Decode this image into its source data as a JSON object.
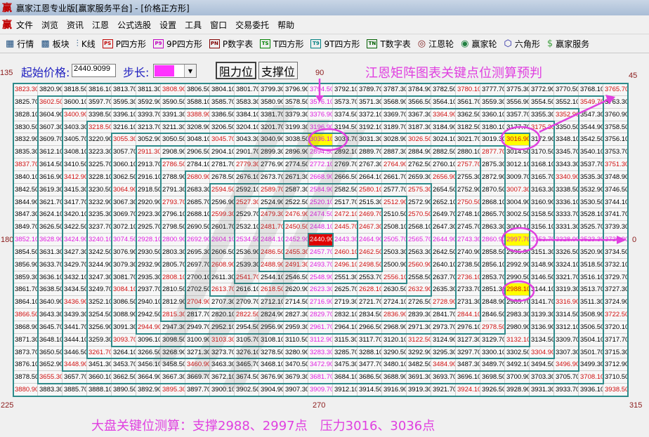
{
  "window": {
    "title": "赢家江恩专业版[赢家服务平台] - [价格正方形]",
    "logo": "赢"
  },
  "menu": [
    "文件",
    "浏览",
    "资讯",
    "江恩",
    "公式选股",
    "设置",
    "工具",
    "窗口",
    "交易委托",
    "帮助"
  ],
  "toolbar": [
    {
      "icon": "quote-table-icon",
      "glyph": "▦",
      "label": "行情"
    },
    {
      "icon": "sector-blocks-icon",
      "glyph": "▩",
      "label": "板块"
    },
    {
      "icon": "candlestick-icon",
      "glyph": "⫶",
      "label": "K线"
    },
    {
      "icon": "ps-icon",
      "badge": "PS",
      "label": "P四方形",
      "color": "#c00000"
    },
    {
      "icon": "p9-icon",
      "badge": "P9",
      "label": "9P四方形",
      "color": "#c000c0"
    },
    {
      "icon": "pn-icon",
      "badge": "PN",
      "label": "P数字表",
      "color": "#800000"
    },
    {
      "icon": "ts-icon",
      "badge": "TS",
      "label": "T四方形",
      "color": "#008000"
    },
    {
      "icon": "t9-icon",
      "badge": "T9",
      "label": "9T四方形",
      "color": "#008080"
    },
    {
      "icon": "tn-icon",
      "badge": "TN",
      "label": "T数字表",
      "color": "#006000"
    },
    {
      "icon": "gann-wheel-icon",
      "glyph": "◎",
      "label": "江恩轮",
      "color": "#802020"
    },
    {
      "icon": "winner-wheel-icon",
      "glyph": "◉",
      "label": "赢家轮",
      "color": "#208040"
    },
    {
      "icon": "hexagon-icon",
      "glyph": "⬡",
      "label": "六角形",
      "color": "#2020a0"
    },
    {
      "icon": "dollar-icon",
      "glyph": "$",
      "label": "赢家服务",
      "color": "#40a040"
    }
  ],
  "controls": {
    "start_price_label": "起始价格:",
    "start_price_value": "2440.9099",
    "step_label": "步长:",
    "resistance_button": "阻力位",
    "support_button": "支撑位"
  },
  "page_title": "江恩矩阵图表关键点位测算预判",
  "degrees": {
    "top_left": "135",
    "top": "90",
    "top_right": "45",
    "left": "180",
    "right": "0",
    "bottom_left": "225",
    "bottom": "270",
    "bottom_right": "315"
  },
  "bottom_note": "大盘关键位测算：支撑2988、2997点　压力3016、3036点",
  "colors": {
    "diagonal_text": "#d01010",
    "axis_text": "#e020e0",
    "highlight_bg": "#ffff00",
    "center_bg": "#e00000",
    "ring_line": "#2e8b8b",
    "annotation": "#e040e0"
  },
  "center_value": "2440.90",
  "highlighted_values": [
    "3036.10",
    "3016.90",
    "2997.70",
    "2988.10"
  ],
  "grid_rows": [
    [
      "3823.30",
      "3820.90",
      "3818.50",
      "3816.10",
      "3813.70",
      "3811.30",
      "3808.90",
      "3806.50",
      "3804.10",
      "3801.70",
      "3799.30",
      "3796.90",
      "3794.50",
      "3792.10",
      "3789.70",
      "3787.30",
      "3784.90",
      "3782.50",
      "3780.10",
      "3777.70",
      "3775.30",
      "3772.90",
      "3770.50",
      "3768.10",
      "3765.70"
    ],
    [
      "3825.70",
      "3602.50",
      "3600.10",
      "3597.70",
      "3595.30",
      "3592.90",
      "3590.50",
      "3588.10",
      "3585.70",
      "3583.30",
      "3580.90",
      "3578.50",
      "3576.10",
      "3573.70",
      "3571.30",
      "3568.90",
      "3566.50",
      "3564.10",
      "3561.70",
      "3559.30",
      "3556.90",
      "3554.50",
      "3552.10",
      "3549.70",
      "3763.30"
    ],
    [
      "3828.10",
      "3604.90",
      "3400.90",
      "3398.50",
      "3396.10",
      "3393.70",
      "3391.30",
      "3388.90",
      "3386.50",
      "3384.10",
      "3381.70",
      "3379.30",
      "3376.90",
      "3374.50",
      "3372.10",
      "3369.70",
      "3367.30",
      "3364.90",
      "3362.50",
      "3360.10",
      "3357.70",
      "3355.30",
      "3352.90",
      "3547.30",
      "3760.90"
    ],
    [
      "3830.50",
      "3607.30",
      "3403.30",
      "3218.50",
      "3216.10",
      "3213.70",
      "3211.30",
      "3208.90",
      "3206.50",
      "3204.10",
      "3201.70",
      "3199.30",
      "3196.90",
      "3194.50",
      "3192.10",
      "3189.70",
      "3187.30",
      "3184.90",
      "3182.50",
      "3180.10",
      "3177.70",
      "3175.30",
      "3350.50",
      "3544.90",
      "3758.50"
    ],
    [
      "3832.90",
      "3609.70",
      "3405.70",
      "3220.90",
      "3055.30",
      "3052.90",
      "3050.50",
      "3048.10",
      "3045.70",
      "3043.30",
      "3040.90",
      "3038.50",
      "3036.10",
      "3033.70",
      "3031.30",
      "3028.90",
      "3026.50",
      "3024.10",
      "3021.70",
      "3019.30",
      "3016.90",
      "3172.90",
      "3348.10",
      "3542.50",
      "3756.10"
    ],
    [
      "3835.30",
      "3612.10",
      "3408.10",
      "3223.30",
      "3057.70",
      "2911.30",
      "2908.90",
      "2906.50",
      "2904.10",
      "2901.70",
      "2899.30",
      "2896.90",
      "2894.50",
      "2892.10",
      "2889.70",
      "2887.30",
      "2884.90",
      "2882.50",
      "2880.10",
      "2877.70",
      "3014.50",
      "3170.50",
      "3345.70",
      "3540.10",
      "3753.70"
    ],
    [
      "3837.70",
      "3614.50",
      "3410.50",
      "3225.70",
      "3060.10",
      "2913.70",
      "2786.50",
      "2784.10",
      "2781.70",
      "2779.30",
      "2776.90",
      "2774.50",
      "2772.10",
      "2769.70",
      "2767.30",
      "2764.90",
      "2762.50",
      "2760.10",
      "2757.70",
      "2875.30",
      "3012.10",
      "3168.10",
      "3343.30",
      "3537.70",
      "3751.30"
    ],
    [
      "3840.10",
      "3616.90",
      "3412.90",
      "3228.10",
      "3062.50",
      "2916.10",
      "2788.90",
      "2680.90",
      "2678.50",
      "2676.10",
      "2673.70",
      "2671.30",
      "2668.90",
      "2666.50",
      "2664.10",
      "2661.70",
      "2659.30",
      "2656.90",
      "2755.30",
      "2872.90",
      "3009.70",
      "3165.70",
      "3340.90",
      "3535.30",
      "3748.90"
    ],
    [
      "3842.50",
      "3619.30",
      "3415.30",
      "3230.50",
      "3064.90",
      "2918.50",
      "2791.30",
      "2683.30",
      "2594.50",
      "2592.10",
      "2589.70",
      "2587.30",
      "2584.90",
      "2582.50",
      "2580.10",
      "2577.70",
      "2575.30",
      "2654.50",
      "2752.90",
      "2870.50",
      "3007.30",
      "3163.30",
      "3338.50",
      "3532.90",
      "3746.50"
    ],
    [
      "3844.90",
      "3621.70",
      "3417.70",
      "3232.90",
      "3067.30",
      "2920.90",
      "2793.70",
      "2685.70",
      "2596.90",
      "2527.30",
      "2524.90",
      "2522.50",
      "2520.10",
      "2517.70",
      "2515.30",
      "2512.90",
      "2572.90",
      "2652.10",
      "2750.50",
      "2868.10",
      "3004.90",
      "3160.90",
      "3336.10",
      "3530.50",
      "3744.10"
    ],
    [
      "3847.30",
      "3624.10",
      "3420.10",
      "3235.30",
      "3069.70",
      "2923.30",
      "2796.10",
      "2688.10",
      "2599.30",
      "2529.70",
      "2479.30",
      "2476.90",
      "2474.50",
      "2472.10",
      "2469.70",
      "2510.50",
      "2570.50",
      "2649.70",
      "2748.10",
      "2865.70",
      "3002.50",
      "3158.50",
      "3333.70",
      "3528.10",
      "3741.70"
    ],
    [
      "3849.70",
      "3626.50",
      "3422.50",
      "3237.70",
      "3072.10",
      "2925.70",
      "2798.50",
      "2690.50",
      "2601.70",
      "2532.10",
      "2481.70",
      "2450.50",
      "2448.10",
      "2445.70",
      "2467.30",
      "2508.10",
      "2568.10",
      "2647.30",
      "2745.70",
      "2863.30",
      "3000.10",
      "3156.10",
      "3331.30",
      "3525.70",
      "3739.30"
    ],
    [
      "3852.10",
      "3628.90",
      "3424.90",
      "3240.10",
      "3074.50",
      "2928.10",
      "2800.90",
      "2692.90",
      "2604.10",
      "2534.50",
      "2484.10",
      "2452.90",
      "2440.90",
      "2443.30",
      "2464.90",
      "2505.70",
      "2565.70",
      "2644.90",
      "2743.30",
      "2860.90",
      "2997.70",
      "3153.70",
      "3328.90",
      "3523.30",
      "3736.90"
    ],
    [
      "3854.50",
      "3631.30",
      "3427.30",
      "3242.50",
      "3076.90",
      "2930.50",
      "2803.30",
      "2695.30",
      "2606.50",
      "2536.90",
      "2486.50",
      "2455.30",
      "2457.70",
      "2460.10",
      "2462.50",
      "2503.30",
      "2563.30",
      "2642.50",
      "2740.90",
      "2858.50",
      "2995.30",
      "3151.30",
      "3326.50",
      "3520.90",
      "3734.50"
    ],
    [
      "3856.90",
      "3633.70",
      "3429.70",
      "3244.90",
      "3079.30",
      "2932.90",
      "2805.70",
      "2697.70",
      "2608.90",
      "2539.30",
      "2488.90",
      "2491.30",
      "2493.70",
      "2496.10",
      "2498.50",
      "2500.90",
      "2560.90",
      "2640.10",
      "2738.50",
      "2856.10",
      "2992.90",
      "3148.90",
      "3324.10",
      "3518.50",
      "3732.10"
    ],
    [
      "3859.30",
      "3636.10",
      "3432.10",
      "3247.30",
      "3081.70",
      "2935.30",
      "2808.10",
      "2700.10",
      "2611.30",
      "2541.70",
      "2544.10",
      "2546.50",
      "2548.90",
      "2551.30",
      "2553.70",
      "2556.10",
      "2558.50",
      "2637.70",
      "2736.10",
      "2853.70",
      "2990.50",
      "3146.50",
      "3321.70",
      "3516.10",
      "3729.70"
    ],
    [
      "3861.70",
      "3638.50",
      "3434.50",
      "3249.70",
      "3084.10",
      "2937.70",
      "2810.50",
      "2702.50",
      "2613.70",
      "2616.10",
      "2618.50",
      "2620.90",
      "2623.30",
      "2625.70",
      "2628.10",
      "2630.50",
      "2632.90",
      "2635.30",
      "2733.70",
      "2851.30",
      "2988.10",
      "3144.10",
      "3319.30",
      "3513.70",
      "3727.30"
    ],
    [
      "3864.10",
      "3640.90",
      "3436.90",
      "3252.10",
      "3086.50",
      "2940.10",
      "2812.90",
      "2704.90",
      "2707.30",
      "2709.70",
      "2712.10",
      "2714.50",
      "2716.90",
      "2719.30",
      "2721.70",
      "2724.10",
      "2726.50",
      "2728.90",
      "2731.30",
      "2848.90",
      "2985.70",
      "3141.70",
      "3316.90",
      "3511.30",
      "3724.90"
    ],
    [
      "3866.50",
      "3643.30",
      "3439.30",
      "3254.50",
      "3088.90",
      "2942.50",
      "2815.30",
      "2817.70",
      "2820.10",
      "2822.50",
      "2824.90",
      "2827.30",
      "2829.70",
      "2832.10",
      "2834.50",
      "2836.90",
      "2839.30",
      "2841.70",
      "2844.10",
      "2846.50",
      "2983.30",
      "3139.30",
      "3314.50",
      "3508.90",
      "3722.50"
    ],
    [
      "3868.90",
      "3645.70",
      "3441.70",
      "3256.90",
      "3091.30",
      "2944.90",
      "2947.30",
      "2949.70",
      "2952.10",
      "2954.50",
      "2956.90",
      "2959.30",
      "2961.70",
      "2964.10",
      "2966.50",
      "2968.90",
      "2971.30",
      "2973.70",
      "2976.10",
      "2978.50",
      "2980.90",
      "3136.90",
      "3312.10",
      "3506.50",
      "3720.10"
    ],
    [
      "3871.30",
      "3648.10",
      "3444.10",
      "3259.30",
      "3093.70",
      "3096.10",
      "3098.50",
      "3100.90",
      "3103.30",
      "3105.70",
      "3108.10",
      "3110.50",
      "3112.90",
      "3115.30",
      "3117.70",
      "3120.10",
      "3122.50",
      "3124.90",
      "3127.30",
      "3129.70",
      "3132.10",
      "3134.50",
      "3309.70",
      "3504.10",
      "3717.70"
    ],
    [
      "3873.70",
      "3650.50",
      "3446.50",
      "3261.70",
      "3264.10",
      "3266.50",
      "3268.90",
      "3271.30",
      "3273.70",
      "3276.10",
      "3278.50",
      "3280.90",
      "3283.30",
      "3285.70",
      "3288.10",
      "3290.50",
      "3292.90",
      "3295.30",
      "3297.70",
      "3300.10",
      "3302.50",
      "3304.90",
      "3307.30",
      "3501.70",
      "3715.30"
    ],
    [
      "3876.10",
      "3652.90",
      "3448.90",
      "3451.30",
      "3453.70",
      "3456.10",
      "3458.50",
      "3460.90",
      "3463.30",
      "3465.70",
      "3468.10",
      "3470.50",
      "3472.90",
      "3475.30",
      "3477.70",
      "3480.10",
      "3482.50",
      "3484.90",
      "3487.30",
      "3489.70",
      "3492.10",
      "3494.50",
      "3496.90",
      "3499.30",
      "3712.90"
    ],
    [
      "3878.50",
      "3655.30",
      "3657.70",
      "3660.10",
      "3662.50",
      "3664.90",
      "3667.30",
      "3669.70",
      "3672.10",
      "3674.50",
      "3676.90",
      "3679.30",
      "3681.70",
      "3684.10",
      "3686.50",
      "3688.90",
      "3691.30",
      "3693.70",
      "3696.10",
      "3698.50",
      "3700.90",
      "3703.30",
      "3705.70",
      "3708.10",
      "3710.50"
    ],
    [
      "3880.90",
      "3883.30",
      "3885.70",
      "3888.10",
      "3890.50",
      "3892.90",
      "3895.30",
      "3897.70",
      "3900.10",
      "3902.50",
      "3904.90",
      "3907.30",
      "3909.70",
      "3912.10",
      "3914.50",
      "3916.90",
      "3919.30",
      "3921.70",
      "3924.10",
      "3926.50",
      "3928.90",
      "3931.30",
      "3933.70",
      "3936.10",
      "3938.50"
    ]
  ]
}
